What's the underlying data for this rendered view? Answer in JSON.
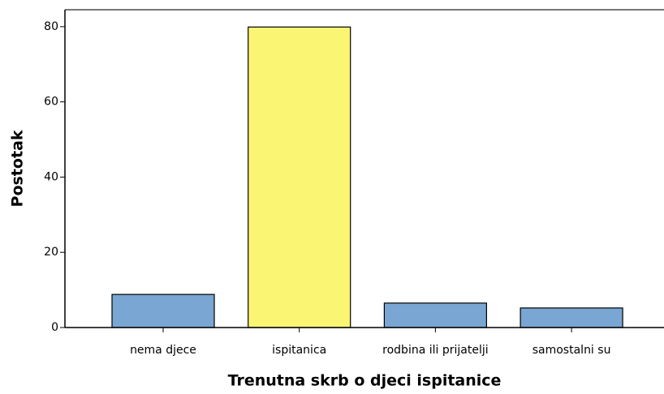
{
  "chart_data": {
    "type": "bar",
    "x_label": "Trenutna skrb o djeci ispitanice",
    "y_label": "Postotak",
    "categories": [
      "nema djece",
      "ispitanica",
      "rodbina ili prijatelji",
      "samostalni su"
    ],
    "values": [
      8.8,
      79.9,
      6.5,
      5.2
    ],
    "colors": [
      "#79a6d2",
      "#fbf574",
      "#79a6d2",
      "#79a6d2"
    ],
    "ylim": [
      0,
      84.5
    ],
    "yticks": [
      0,
      20,
      40,
      60,
      80
    ],
    "grid": false
  }
}
